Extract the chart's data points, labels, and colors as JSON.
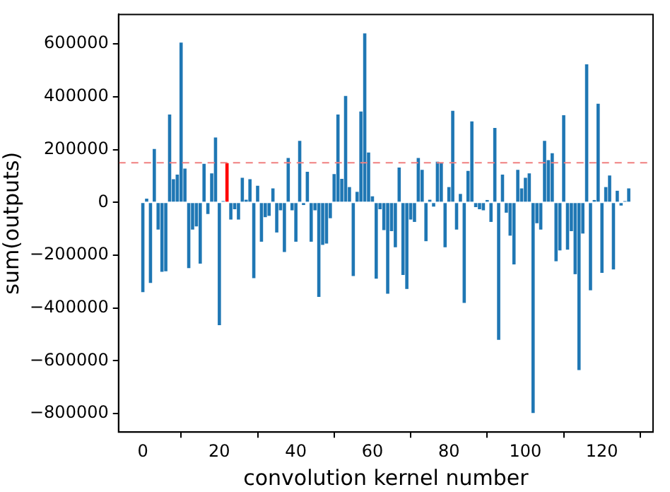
{
  "chart_data": {
    "type": "bar",
    "xlabel": "convolution kernel number",
    "ylabel": "sum(outputs)",
    "x": [
      0,
      1,
      2,
      3,
      4,
      5,
      6,
      7,
      8,
      9,
      10,
      11,
      12,
      13,
      14,
      15,
      16,
      17,
      18,
      19,
      20,
      21,
      22,
      23,
      24,
      25,
      26,
      27,
      28,
      29,
      30,
      31,
      32,
      33,
      34,
      35,
      36,
      37,
      38,
      39,
      40,
      41,
      42,
      43,
      44,
      45,
      46,
      47,
      48,
      49,
      50,
      51,
      52,
      53,
      54,
      55,
      56,
      57,
      58,
      59,
      60,
      61,
      62,
      63,
      64,
      65,
      66,
      67,
      68,
      69,
      70,
      71,
      72,
      73,
      74,
      75,
      76,
      77,
      78,
      79,
      80,
      81,
      82,
      83,
      84,
      85,
      86,
      87,
      88,
      89,
      90,
      91,
      92,
      93,
      94,
      95,
      96,
      97,
      98,
      99,
      100,
      101,
      102,
      103,
      104,
      105,
      106,
      107,
      108,
      109,
      110,
      111,
      112,
      113,
      114,
      115,
      116,
      117,
      118,
      119,
      120,
      121,
      122,
      123,
      124,
      125,
      126,
      127
    ],
    "values": [
      -340000,
      14000,
      -305000,
      202000,
      -103000,
      -263000,
      -261000,
      333000,
      88000,
      105000,
      605000,
      128000,
      -249000,
      -103000,
      -91000,
      -232000,
      146000,
      -44000,
      110000,
      246000,
      -465000,
      5000,
      149000,
      -65000,
      -26000,
      -65000,
      93000,
      10000,
      88000,
      -287000,
      63000,
      -149000,
      -56000,
      -51000,
      53000,
      -114000,
      -30000,
      -188000,
      168000,
      -30000,
      -149000,
      233000,
      -10000,
      116000,
      -149000,
      -30000,
      -358000,
      -161000,
      -156000,
      -60000,
      107000,
      333000,
      89000,
      403000,
      58000,
      -279000,
      40000,
      344000,
      640000,
      189000,
      23000,
      -289000,
      -26000,
      -105000,
      -346000,
      -109000,
      -170000,
      132000,
      -275000,
      -328000,
      -65000,
      -74000,
      168000,
      123000,
      -147000,
      10000,
      -16000,
      154000,
      149000,
      -170000,
      58000,
      347000,
      -103000,
      32000,
      -381000,
      119000,
      307000,
      -18000,
      -26000,
      -30000,
      9000,
      -74000,
      282000,
      -521000,
      105000,
      -39000,
      -126000,
      -235000,
      123000,
      53000,
      93000,
      110000,
      -798000,
      -79000,
      -103000,
      233000,
      160000,
      186000,
      -223000,
      -182000,
      330000,
      -179000,
      -109000,
      -272000,
      -635000,
      -118000,
      523000,
      -333000,
      9000,
      374000,
      -267000,
      58000,
      102000,
      -254000,
      44000,
      -12000,
      5000,
      53000
    ],
    "colors": [
      "#1f77b4",
      "#1f77b4",
      "#1f77b4",
      "#1f77b4",
      "#1f77b4",
      "#1f77b4",
      "#1f77b4",
      "#1f77b4",
      "#1f77b4",
      "#1f77b4",
      "#1f77b4",
      "#1f77b4",
      "#1f77b4",
      "#1f77b4",
      "#1f77b4",
      "#1f77b4",
      "#1f77b4",
      "#1f77b4",
      "#1f77b4",
      "#1f77b4",
      "#1f77b4",
      "#1f77b4",
      "#ff0000",
      "#1f77b4",
      "#1f77b4",
      "#1f77b4",
      "#1f77b4",
      "#1f77b4",
      "#1f77b4",
      "#1f77b4",
      "#1f77b4",
      "#1f77b4",
      "#1f77b4",
      "#1f77b4",
      "#1f77b4",
      "#1f77b4",
      "#1f77b4",
      "#1f77b4",
      "#1f77b4",
      "#1f77b4",
      "#1f77b4",
      "#1f77b4",
      "#1f77b4",
      "#1f77b4",
      "#1f77b4",
      "#1f77b4",
      "#1f77b4",
      "#1f77b4",
      "#1f77b4",
      "#1f77b4",
      "#1f77b4",
      "#1f77b4",
      "#1f77b4",
      "#1f77b4",
      "#1f77b4",
      "#1f77b4",
      "#1f77b4",
      "#1f77b4",
      "#1f77b4",
      "#1f77b4",
      "#1f77b4",
      "#1f77b4",
      "#1f77b4",
      "#1f77b4",
      "#1f77b4",
      "#1f77b4",
      "#1f77b4",
      "#1f77b4",
      "#1f77b4",
      "#1f77b4",
      "#1f77b4",
      "#1f77b4",
      "#1f77b4",
      "#1f77b4",
      "#1f77b4",
      "#1f77b4",
      "#1f77b4",
      "#1f77b4",
      "#1f77b4",
      "#1f77b4",
      "#1f77b4",
      "#1f77b4",
      "#1f77b4",
      "#1f77b4",
      "#1f77b4",
      "#1f77b4",
      "#1f77b4",
      "#1f77b4",
      "#1f77b4",
      "#1f77b4",
      "#1f77b4",
      "#1f77b4",
      "#1f77b4",
      "#1f77b4",
      "#1f77b4",
      "#1f77b4",
      "#1f77b4",
      "#1f77b4",
      "#1f77b4",
      "#1f77b4",
      "#1f77b4",
      "#1f77b4",
      "#1f77b4",
      "#1f77b4",
      "#1f77b4",
      "#1f77b4",
      "#1f77b4",
      "#1f77b4",
      "#1f77b4",
      "#1f77b4",
      "#1f77b4",
      "#1f77b4",
      "#1f77b4",
      "#1f77b4",
      "#1f77b4",
      "#1f77b4",
      "#1f77b4",
      "#1f77b4",
      "#1f77b4",
      "#1f77b4",
      "#1f77b4",
      "#1f77b4",
      "#1f77b4",
      "#1f77b4",
      "#1f77b4",
      "#1f77b4",
      "#1f77b4",
      "#1f77b4"
    ],
    "xlim": [
      -6.35,
      133.35
    ],
    "xticks": [
      0,
      20,
      40,
      60,
      80,
      100,
      120
    ],
    "ylim": [
      -870000,
      712000
    ],
    "yticks": [
      -800000,
      -600000,
      -400000,
      -200000,
      0,
      200000,
      400000,
      600000
    ],
    "ref_lines": [
      {
        "axis": "y",
        "value": 150000,
        "color": "#f08080",
        "line_style": "dashed"
      }
    ]
  }
}
